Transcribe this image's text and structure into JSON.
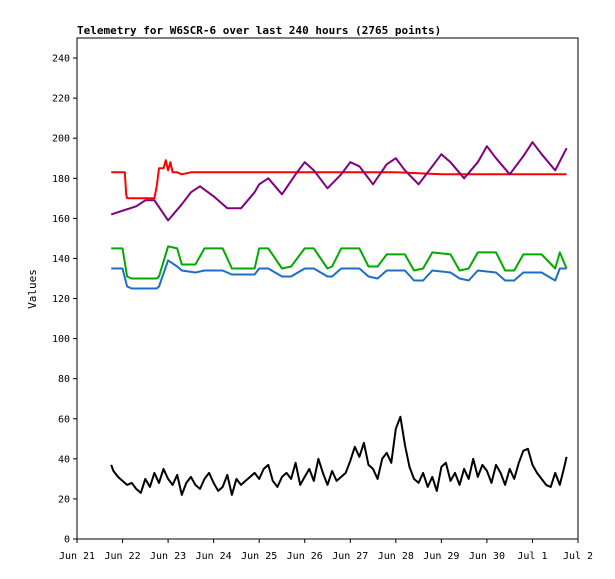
{
  "chart_data": {
    "type": "line",
    "title": "Telemetry for W6SCR-6 over last 240 hours (2765 points)",
    "xlabel": "",
    "ylabel": "Values",
    "xlim": [
      0,
      11
    ],
    "ylim": [
      0,
      250
    ],
    "x_ticks": [
      0,
      1,
      2,
      3,
      4,
      5,
      6,
      7,
      8,
      9,
      10,
      11
    ],
    "x_tick_labels": [
      "Jun 21",
      "Jun 22",
      "Jun 23",
      "Jun 24",
      "Jun 25",
      "Jun 26",
      "Jun 27",
      "Jun 28",
      "Jun 29",
      "Jun 30",
      "Jul 1",
      "Jul 2"
    ],
    "y_ticks": [
      0,
      20,
      40,
      60,
      80,
      100,
      120,
      140,
      160,
      180,
      200,
      220,
      240
    ],
    "y_tick_labels": [
      "0",
      "20",
      "40",
      "60",
      "80",
      "100",
      "120",
      "140",
      "160",
      "180",
      "200",
      "220",
      "240"
    ],
    "grid": false,
    "legend": "none",
    "series": [
      {
        "color": "#ff0000",
        "x": [
          0.75,
          1.05,
          1.08,
          1.1,
          1.3,
          1.5,
          1.7,
          1.75,
          1.8,
          1.9,
          1.95,
          2.0,
          2.05,
          2.1,
          2.2,
          2.3,
          2.5,
          3.0,
          4.0,
          5.0,
          6.0,
          7.0,
          8.0,
          9.0,
          10.0,
          10.75
        ],
        "y": [
          183,
          183,
          172,
          170,
          170,
          170,
          170,
          176,
          185,
          185,
          189,
          184,
          188,
          183,
          183,
          182,
          183,
          183,
          183,
          183,
          183,
          183,
          182,
          182,
          182,
          182
        ]
      },
      {
        "color": "#800080",
        "x": [
          0.75,
          1.3,
          1.5,
          1.7,
          2.0,
          2.3,
          2.5,
          2.7,
          3.0,
          3.3,
          3.6,
          3.9,
          4.0,
          4.2,
          4.5,
          4.8,
          5.0,
          5.2,
          5.5,
          5.8,
          6.0,
          6.2,
          6.5,
          6.8,
          7.0,
          7.2,
          7.5,
          7.8,
          8.0,
          8.2,
          8.5,
          8.8,
          9.0,
          9.2,
          9.5,
          9.8,
          10.0,
          10.2,
          10.5,
          10.75
        ],
        "y": [
          162,
          166,
          169,
          169,
          159,
          167,
          173,
          176,
          171,
          165,
          165,
          173,
          177,
          180,
          172,
          182,
          188,
          184,
          175,
          182,
          188,
          186,
          177,
          187,
          190,
          184,
          177,
          186,
          192,
          188,
          180,
          188,
          196,
          190,
          182,
          191,
          198,
          192,
          184,
          195
        ]
      },
      {
        "color": "#00aa00",
        "x": [
          0.75,
          1.0,
          1.1,
          1.2,
          1.5,
          1.75,
          1.8,
          2.0,
          2.2,
          2.3,
          2.6,
          2.8,
          3.2,
          3.4,
          3.9,
          4.0,
          4.2,
          4.5,
          4.7,
          5.0,
          5.2,
          5.5,
          5.6,
          5.8,
          6.2,
          6.4,
          6.6,
          6.8,
          7.2,
          7.4,
          7.6,
          7.8,
          8.2,
          8.4,
          8.6,
          8.8,
          9.2,
          9.4,
          9.6,
          9.8,
          10.2,
          10.5,
          10.6,
          10.75
        ],
        "y": [
          145,
          145,
          131,
          130,
          130,
          130,
          131,
          146,
          145,
          137,
          137,
          145,
          145,
          135,
          135,
          145,
          145,
          135,
          136,
          145,
          145,
          135,
          136,
          145,
          145,
          136,
          136,
          142,
          142,
          134,
          135,
          143,
          142,
          134,
          135,
          143,
          143,
          134,
          134,
          142,
          142,
          135,
          143,
          135
        ]
      },
      {
        "color": "#1e6ec8",
        "x": [
          0.75,
          1.0,
          1.1,
          1.2,
          1.5,
          1.75,
          1.8,
          2.0,
          2.2,
          2.3,
          2.6,
          2.8,
          3.2,
          3.4,
          3.9,
          4.0,
          4.2,
          4.5,
          4.7,
          5.0,
          5.2,
          5.5,
          5.6,
          5.8,
          6.2,
          6.4,
          6.6,
          6.8,
          7.2,
          7.4,
          7.6,
          7.8,
          8.2,
          8.4,
          8.6,
          8.8,
          9.2,
          9.4,
          9.6,
          9.8,
          10.2,
          10.5,
          10.6,
          10.75
        ],
        "y": [
          135,
          135,
          126,
          125,
          125,
          125,
          126,
          139,
          136,
          134,
          133,
          134,
          134,
          132,
          132,
          135,
          135,
          131,
          131,
          135,
          135,
          131,
          131,
          135,
          135,
          131,
          130,
          134,
          134,
          129,
          129,
          134,
          133,
          130,
          129,
          134,
          133,
          129,
          129,
          133,
          133,
          129,
          135,
          135
        ]
      },
      {
        "color": "#000000",
        "x": [
          0.75,
          0.8,
          0.9,
          1.0,
          1.1,
          1.2,
          1.3,
          1.4,
          1.5,
          1.6,
          1.7,
          1.8,
          1.9,
          2.0,
          2.1,
          2.2,
          2.3,
          2.4,
          2.5,
          2.6,
          2.7,
          2.8,
          2.9,
          3.0,
          3.1,
          3.2,
          3.3,
          3.4,
          3.5,
          3.6,
          3.7,
          3.8,
          3.9,
          4.0,
          4.1,
          4.2,
          4.3,
          4.4,
          4.5,
          4.6,
          4.7,
          4.8,
          4.9,
          5.0,
          5.1,
          5.2,
          5.3,
          5.4,
          5.5,
          5.6,
          5.7,
          5.8,
          5.9,
          6.0,
          6.1,
          6.2,
          6.3,
          6.4,
          6.5,
          6.6,
          6.7,
          6.8,
          6.9,
          7.0,
          7.1,
          7.2,
          7.3,
          7.4,
          7.5,
          7.6,
          7.7,
          7.8,
          7.9,
          8.0,
          8.1,
          8.2,
          8.3,
          8.4,
          8.5,
          8.6,
          8.7,
          8.8,
          8.9,
          9.0,
          9.1,
          9.2,
          9.3,
          9.4,
          9.5,
          9.6,
          9.7,
          9.8,
          9.9,
          10.0,
          10.1,
          10.2,
          10.3,
          10.4,
          10.5,
          10.6,
          10.7,
          10.75
        ],
        "y": [
          37,
          34,
          31,
          29,
          27,
          28,
          25,
          23,
          30,
          26,
          33,
          28,
          35,
          30,
          27,
          32,
          22,
          28,
          31,
          27,
          25,
          30,
          33,
          28,
          24,
          26,
          32,
          22,
          30,
          27,
          29,
          31,
          33,
          30,
          35,
          37,
          29,
          26,
          31,
          33,
          30,
          38,
          27,
          31,
          35,
          29,
          40,
          33,
          27,
          34,
          29,
          31,
          33,
          39,
          46,
          41,
          48,
          37,
          35,
          30,
          40,
          43,
          38,
          55,
          61,
          47,
          36,
          30,
          28,
          33,
          26,
          31,
          24,
          36,
          38,
          29,
          33,
          27,
          35,
          30,
          40,
          31,
          37,
          34,
          28,
          37,
          33,
          27,
          35,
          30,
          38,
          44,
          45,
          37,
          33,
          30,
          27,
          26,
          33,
          27,
          36,
          41
        ]
      }
    ]
  }
}
